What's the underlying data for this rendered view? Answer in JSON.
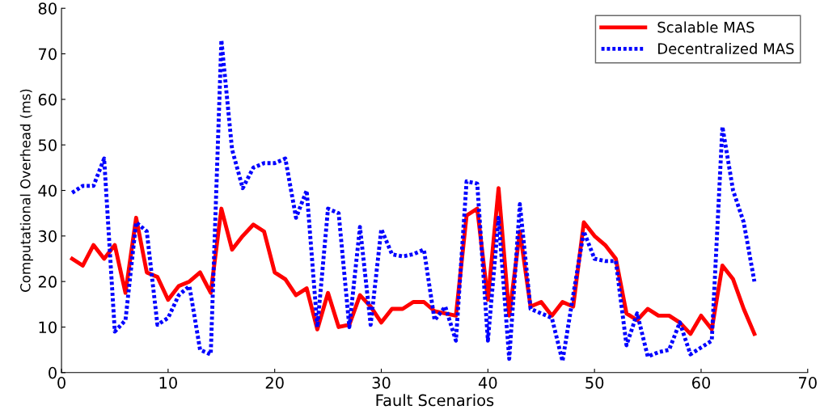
{
  "chart_data": {
    "type": "line",
    "xlabel": "Fault Scenarios",
    "ylabel": "Computational Overhead (ms)",
    "x": [
      1,
      2,
      3,
      4,
      5,
      6,
      7,
      8,
      9,
      10,
      11,
      12,
      13,
      14,
      15,
      16,
      17,
      18,
      19,
      20,
      21,
      22,
      23,
      24,
      25,
      26,
      27,
      28,
      29,
      30,
      31,
      32,
      33,
      34,
      35,
      36,
      37,
      38,
      39,
      40,
      41,
      42,
      43,
      44,
      45,
      46,
      47,
      48,
      49,
      50,
      51,
      52,
      53,
      54,
      55,
      56,
      57,
      58,
      59,
      60,
      61,
      62,
      63,
      64,
      65
    ],
    "series": [
      {
        "name": "Scalable MAS",
        "color": "#ff0000",
        "line_style": "solid",
        "values": [
          25,
          23.5,
          28,
          25,
          28,
          17.5,
          34,
          22,
          21,
          16,
          19,
          20,
          22,
          17.5,
          36,
          27,
          30,
          32.5,
          31,
          22,
          20.5,
          17,
          18.5,
          9.5,
          17.5,
          10,
          10.5,
          17,
          14.5,
          11,
          14,
          14,
          15.5,
          15.5,
          13.5,
          13,
          12.5,
          34.5,
          36,
          16,
          40.5,
          12.5,
          31,
          14.5,
          15.5,
          12.5,
          15.5,
          14.5,
          33,
          30,
          28,
          25,
          13,
          11.5,
          14,
          12.5,
          12.5,
          11,
          8.5,
          12.5,
          9.5,
          23.5,
          20.5,
          14,
          8.5
        ]
      },
      {
        "name": "Decentralized MAS",
        "color": "#0000ff",
        "line_style": "dotted",
        "values": [
          39.5,
          41,
          41,
          47,
          9,
          11.5,
          33,
          31,
          10.5,
          12,
          17,
          19,
          5,
          4,
          73,
          49,
          40.5,
          45,
          46,
          46,
          47,
          34,
          40,
          10,
          36,
          35,
          10,
          32,
          10.5,
          31.5,
          26,
          25.5,
          26,
          27,
          11.5,
          14.5,
          7,
          42,
          41.5,
          7,
          34,
          3,
          37,
          14,
          13,
          12,
          2.5,
          17,
          31,
          25,
          24.5,
          24.5,
          6,
          13,
          3.5,
          4.5,
          5,
          11,
          4,
          5.5,
          7,
          54,
          40,
          33,
          20
        ]
      }
    ],
    "xlim": [
      0,
      70
    ],
    "xticks": [
      0,
      10,
      20,
      30,
      40,
      50,
      60,
      70
    ],
    "ylim": [
      0,
      80
    ],
    "yticks": [
      0,
      10,
      20,
      30,
      40,
      50,
      60,
      70,
      80
    ],
    "grid": false,
    "legend": "top right"
  }
}
